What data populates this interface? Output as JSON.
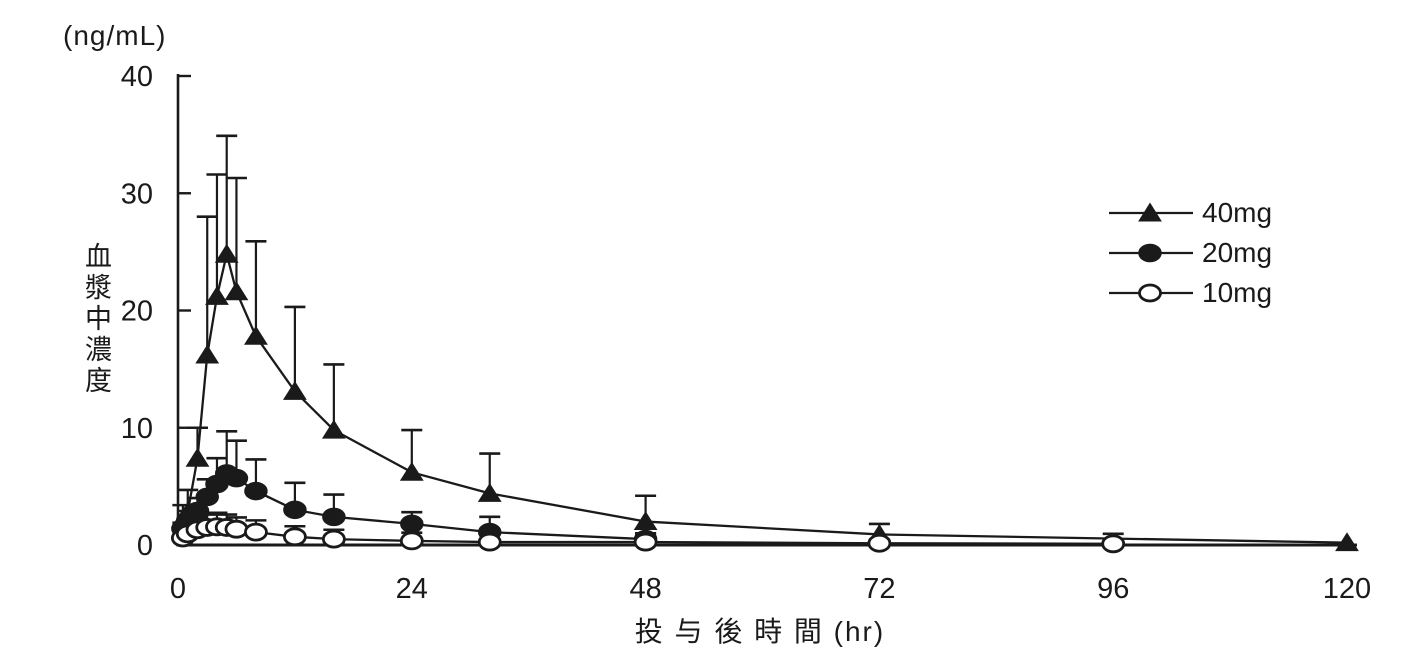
{
  "page": {
    "background": "#ffffff",
    "ink": "#1a1a1a"
  },
  "chart_data": {
    "type": "line",
    "title": "",
    "unit_label": "(ng/mL)",
    "ylabel": "血漿中濃度",
    "xlabel": "投 与 後 時 間 (hr)",
    "xlim": [
      0,
      120
    ],
    "ylim": [
      0,
      40
    ],
    "x_ticks": [
      0,
      24,
      48,
      72,
      96,
      120
    ],
    "y_ticks": [
      0,
      10,
      20,
      30,
      40
    ],
    "grid": false,
    "legend_position": "upper right",
    "error_bars": "upper SD whiskers with caps",
    "colors": {
      "line": "#1a1a1a",
      "background": "#ffffff"
    },
    "series": [
      {
        "name": "40mg",
        "marker": "filled-triangle",
        "x": [
          0.5,
          1,
          2,
          3,
          4,
          5,
          6,
          8,
          12,
          16,
          24,
          32,
          48,
          72,
          120
        ],
        "y": [
          2.2,
          2.8,
          7.4,
          16.2,
          21.2,
          24.8,
          21.6,
          17.8,
          13.1,
          9.8,
          6.2,
          4.4,
          2.0,
          0.9,
          0.2
        ],
        "sd": [
          1.2,
          1.9,
          2.6,
          11.8,
          10.4,
          10.1,
          9.7,
          8.1,
          7.2,
          5.6,
          3.6,
          3.4,
          2.2,
          0.9,
          0
        ]
      },
      {
        "name": "20mg",
        "marker": "filled-circle",
        "x": [
          0.5,
          1,
          2,
          3,
          4,
          5,
          6,
          8,
          12,
          16,
          24,
          32,
          48
        ],
        "y": [
          1.4,
          2.1,
          2.9,
          4.1,
          5.2,
          6.1,
          5.7,
          4.6,
          3.0,
          2.4,
          1.8,
          1.1,
          0.5
        ],
        "sd": [
          0.5,
          0.8,
          1.1,
          1.5,
          2.2,
          3.6,
          3.2,
          2.7,
          2.3,
          1.9,
          1.0,
          1.3,
          0.5
        ]
      },
      {
        "name": "10mg",
        "marker": "open-circle",
        "x": [
          0.5,
          1,
          2,
          3,
          4,
          5,
          6,
          8,
          12,
          16,
          24,
          32,
          48,
          72,
          96
        ],
        "y": [
          0.6,
          0.95,
          1.3,
          1.5,
          1.55,
          1.5,
          1.35,
          1.1,
          0.7,
          0.5,
          0.35,
          0.25,
          0.25,
          0.15,
          0.1
        ],
        "sd": [
          0.35,
          0.6,
          1.0,
          1.1,
          1.2,
          1.1,
          1.0,
          1.0,
          0.9,
          0.8,
          0.7,
          0.6,
          0.7,
          0.3,
          0.85
        ]
      }
    ]
  }
}
